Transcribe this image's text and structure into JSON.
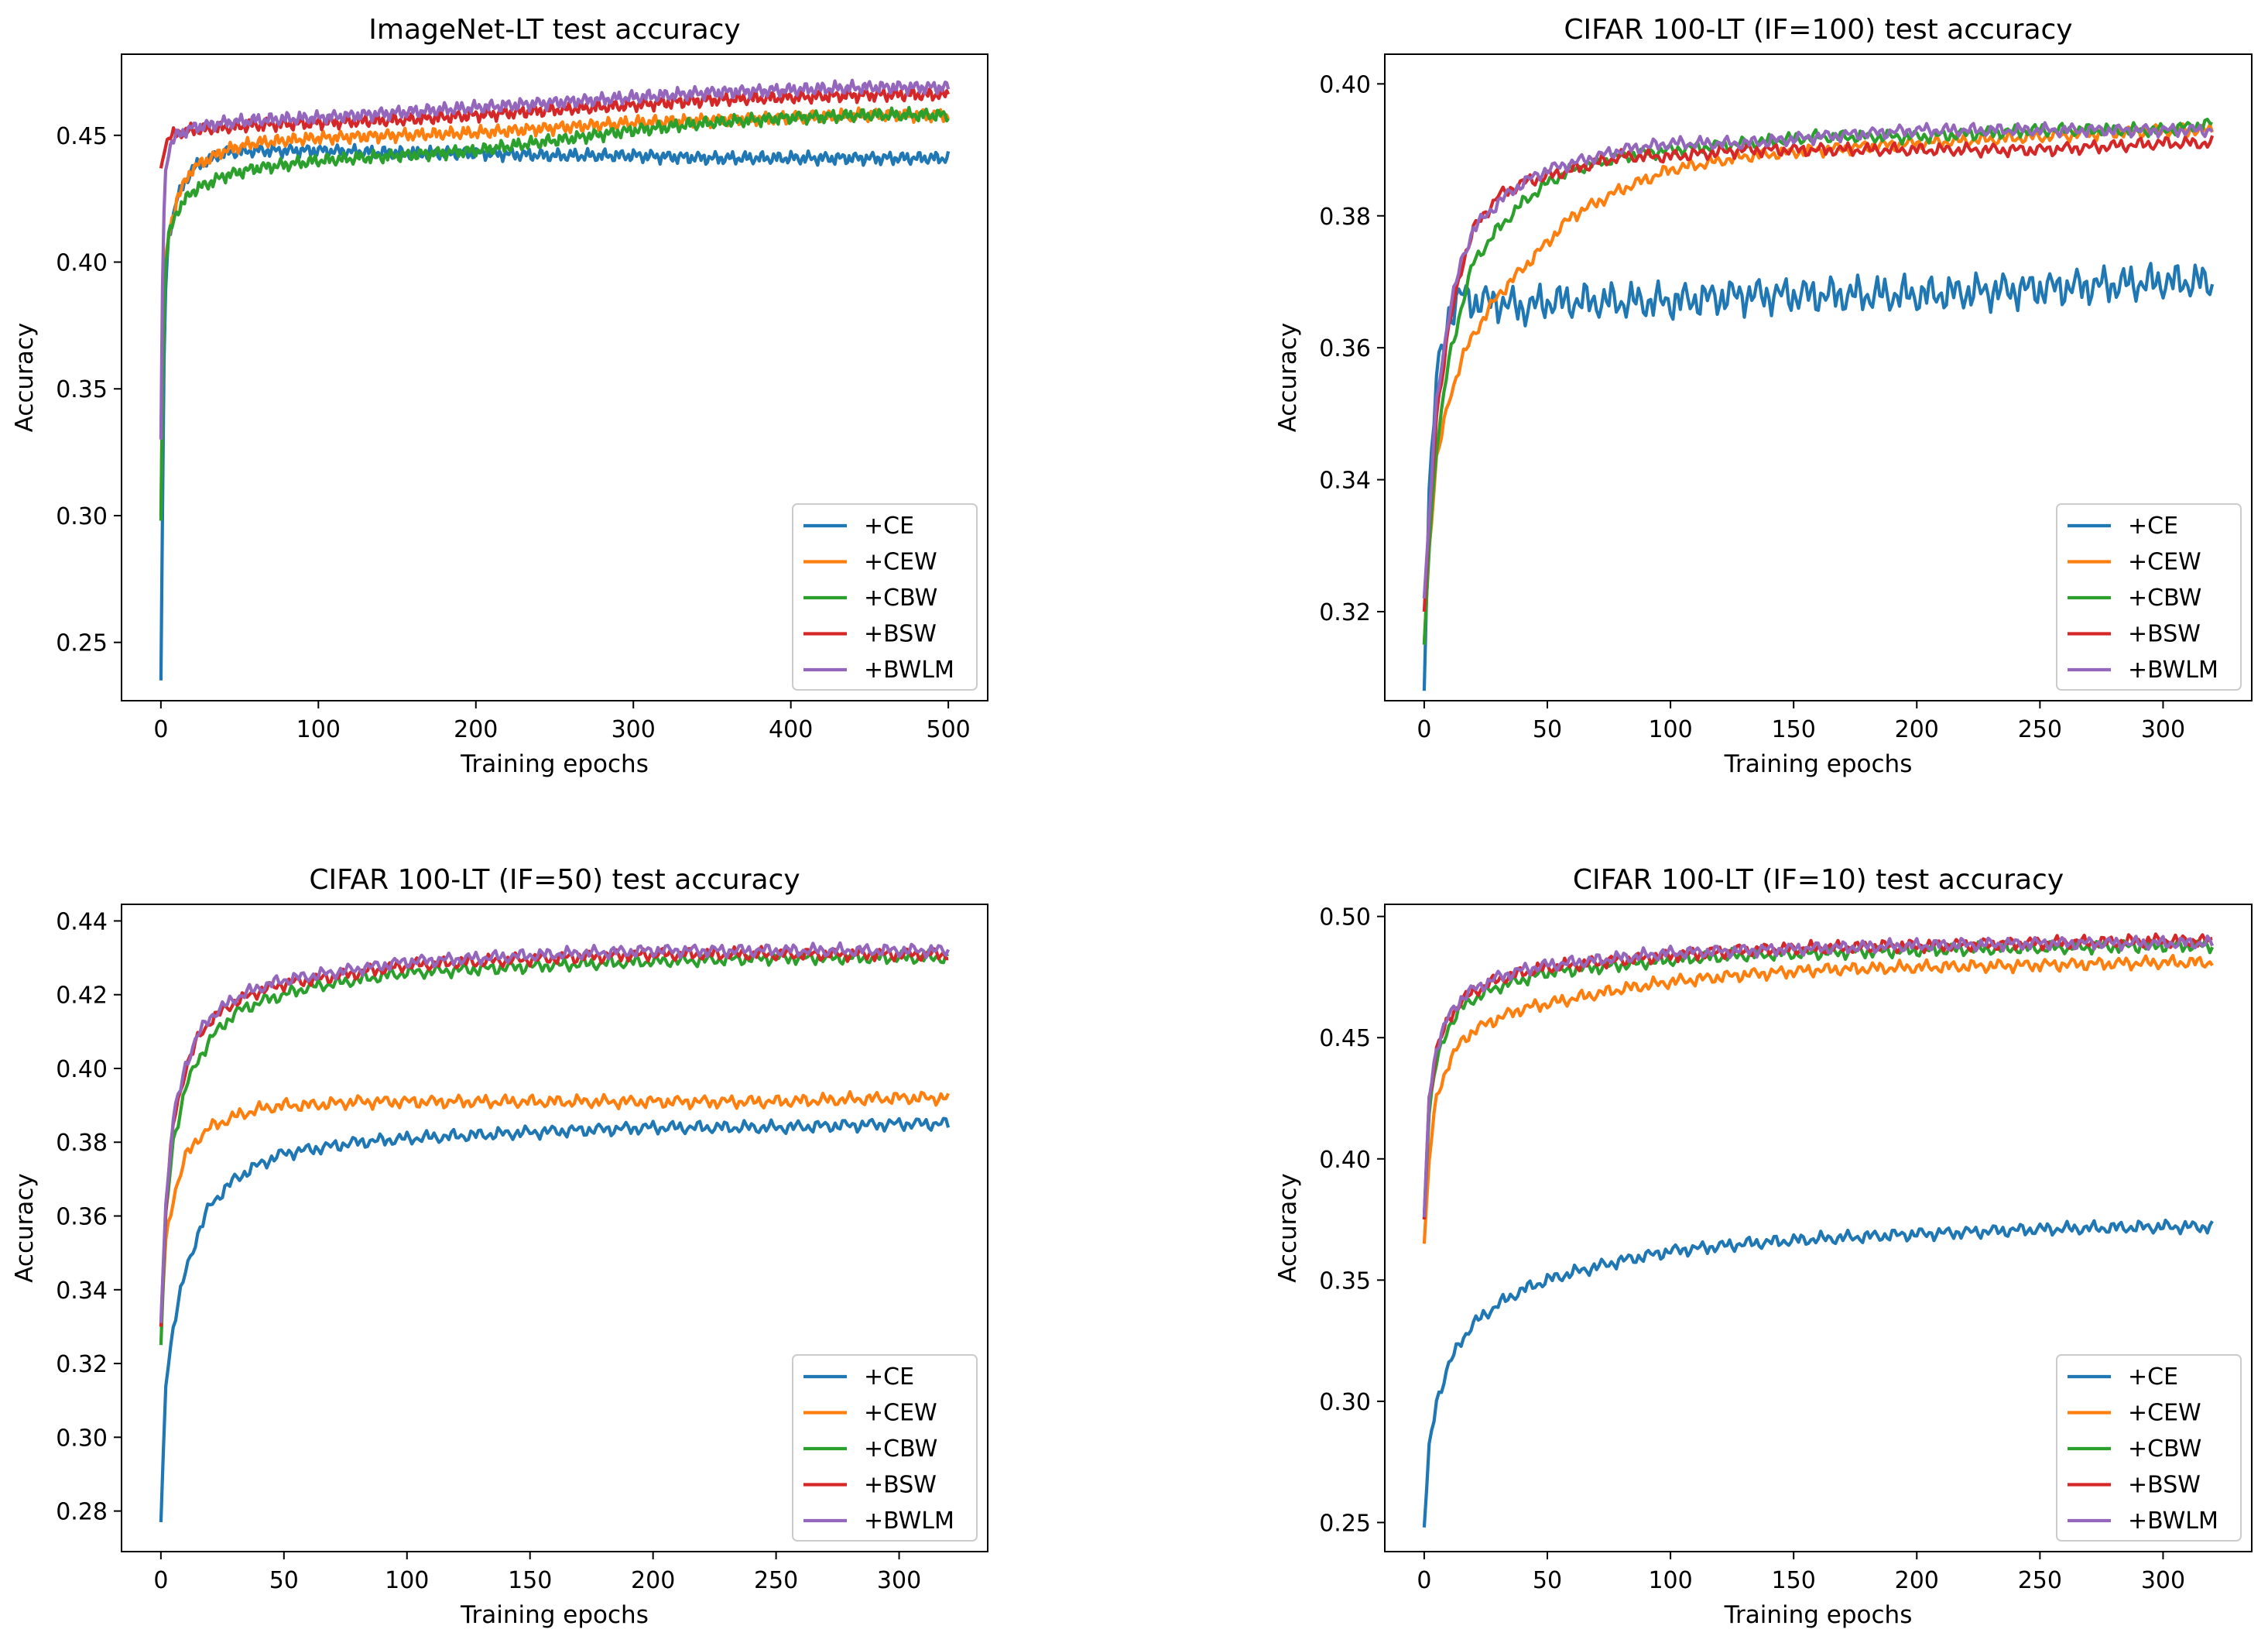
{
  "figure": {
    "background": "#ffffff"
  },
  "colors": {
    "+CE": "#1f77b4",
    "+CEW": "#ff7f0e",
    "+CBW": "#2ca02c",
    "+BSW": "#d62728",
    "+BWLM": "#9467bd"
  },
  "chart_data": [
    {
      "type": "line",
      "title": "ImageNet-LT test accuracy",
      "xlabel": "Training epochs",
      "ylabel": "Accuracy",
      "xlim": [
        -25,
        525
      ],
      "ylim": [
        0.227,
        0.482
      ],
      "xticks": [
        0,
        100,
        200,
        300,
        400,
        500
      ],
      "yticks": [
        0.25,
        0.3,
        0.35,
        0.4,
        0.45
      ],
      "x": [
        0,
        1,
        2,
        3,
        5,
        10,
        20,
        40,
        60,
        100,
        150,
        200,
        250,
        300,
        350,
        400,
        450,
        500
      ],
      "legend": "lower-right",
      "series": [
        {
          "name": "+CE",
          "values": [
            0.235,
            0.3,
            0.36,
            0.39,
            0.41,
            0.425,
            0.437,
            0.443,
            0.444,
            0.444,
            0.443,
            0.443,
            0.442,
            0.442,
            0.441,
            0.441,
            0.441,
            0.441
          ]
        },
        {
          "name": "+CEW",
          "values": [
            0.3,
            0.35,
            0.38,
            0.4,
            0.41,
            0.425,
            0.437,
            0.444,
            0.447,
            0.449,
            0.45,
            0.451,
            0.453,
            0.455,
            0.456,
            0.457,
            0.458,
            0.458
          ]
        },
        {
          "name": "+CBW",
          "values": [
            0.298,
            0.35,
            0.38,
            0.4,
            0.41,
            0.42,
            0.428,
            0.434,
            0.437,
            0.44,
            0.442,
            0.444,
            0.448,
            0.452,
            0.455,
            0.457,
            0.458,
            0.458
          ]
        },
        {
          "name": "+BSW",
          "values": [
            0.437,
            0.44,
            0.445,
            0.447,
            0.449,
            0.451,
            0.452,
            0.453,
            0.454,
            0.455,
            0.456,
            0.458,
            0.46,
            0.462,
            0.464,
            0.465,
            0.466,
            0.466
          ]
        },
        {
          "name": "+BWLM",
          "values": [
            0.33,
            0.39,
            0.42,
            0.435,
            0.445,
            0.45,
            0.453,
            0.455,
            0.456,
            0.457,
            0.459,
            0.461,
            0.463,
            0.465,
            0.467,
            0.468,
            0.469,
            0.469
          ]
        }
      ]
    },
    {
      "type": "line",
      "title": "CIFAR 100-LT (IF=100) test accuracy",
      "xlabel": "Training epochs",
      "ylabel": "Accuracy",
      "xlim": [
        -16,
        336
      ],
      "ylim": [
        0.3065,
        0.4045
      ],
      "xticks": [
        0,
        50,
        100,
        150,
        200,
        250,
        300
      ],
      "yticks": [
        0.32,
        0.34,
        0.36,
        0.38,
        0.4
      ],
      "x": [
        0,
        2,
        5,
        10,
        15,
        20,
        30,
        40,
        50,
        60,
        80,
        100,
        130,
        160,
        200,
        250,
        300,
        320
      ],
      "legend": "lower-right",
      "series": [
        {
          "name": "+CE",
          "values": [
            0.308,
            0.338,
            0.355,
            0.365,
            0.368,
            0.367,
            0.367,
            0.366,
            0.367,
            0.367,
            0.367,
            0.367,
            0.368,
            0.368,
            0.368,
            0.369,
            0.37,
            0.37
          ]
        },
        {
          "name": "+CEW",
          "values": [
            0.315,
            0.33,
            0.343,
            0.352,
            0.358,
            0.362,
            0.368,
            0.372,
            0.376,
            0.38,
            0.384,
            0.387,
            0.389,
            0.39,
            0.391,
            0.392,
            0.393,
            0.393
          ]
        },
        {
          "name": "+CBW",
          "values": [
            0.315,
            0.33,
            0.345,
            0.358,
            0.366,
            0.373,
            0.378,
            0.382,
            0.385,
            0.387,
            0.389,
            0.39,
            0.391,
            0.392,
            0.392,
            0.393,
            0.393,
            0.394
          ]
        },
        {
          "name": "+BSW",
          "values": [
            0.32,
            0.333,
            0.35,
            0.363,
            0.372,
            0.378,
            0.383,
            0.385,
            0.386,
            0.387,
            0.389,
            0.389,
            0.39,
            0.39,
            0.39,
            0.39,
            0.391,
            0.391
          ]
        },
        {
          "name": "+BWLM",
          "values": [
            0.322,
            0.334,
            0.352,
            0.365,
            0.373,
            0.378,
            0.382,
            0.385,
            0.387,
            0.388,
            0.39,
            0.391,
            0.391,
            0.392,
            0.393,
            0.393,
            0.393,
            0.393
          ]
        }
      ]
    },
    {
      "type": "line",
      "title": "CIFAR 100-LT (IF=50) test accuracy",
      "xlabel": "Training epochs",
      "ylabel": "Accuracy",
      "xlim": [
        -16,
        336
      ],
      "ylim": [
        0.269,
        0.4445
      ],
      "xticks": [
        0,
        50,
        100,
        150,
        200,
        250,
        300
      ],
      "yticks": [
        0.28,
        0.3,
        0.32,
        0.34,
        0.36,
        0.38,
        0.4,
        0.42,
        0.44
      ],
      "x": [
        0,
        2,
        5,
        10,
        15,
        20,
        30,
        40,
        50,
        60,
        80,
        100,
        130,
        160,
        200,
        250,
        300,
        320
      ],
      "legend": "lower-right",
      "series": [
        {
          "name": "+CE",
          "values": [
            0.277,
            0.315,
            0.33,
            0.345,
            0.355,
            0.363,
            0.37,
            0.374,
            0.377,
            0.378,
            0.38,
            0.381,
            0.382,
            0.383,
            0.384,
            0.384,
            0.385,
            0.385
          ]
        },
        {
          "name": "+CEW",
          "values": [
            0.33,
            0.353,
            0.365,
            0.376,
            0.381,
            0.384,
            0.387,
            0.389,
            0.39,
            0.39,
            0.391,
            0.391,
            0.391,
            0.391,
            0.391,
            0.391,
            0.392,
            0.392
          ]
        },
        {
          "name": "+CBW",
          "values": [
            0.325,
            0.36,
            0.38,
            0.395,
            0.402,
            0.408,
            0.415,
            0.418,
            0.42,
            0.422,
            0.424,
            0.426,
            0.427,
            0.428,
            0.429,
            0.43,
            0.43,
            0.43
          ]
        },
        {
          "name": "+BSW",
          "values": [
            0.33,
            0.362,
            0.385,
            0.4,
            0.408,
            0.413,
            0.418,
            0.421,
            0.423,
            0.424,
            0.426,
            0.428,
            0.429,
            0.43,
            0.431,
            0.431,
            0.431,
            0.431
          ]
        },
        {
          "name": "+BWLM",
          "values": [
            0.331,
            0.363,
            0.386,
            0.401,
            0.409,
            0.414,
            0.419,
            0.422,
            0.424,
            0.425,
            0.427,
            0.429,
            0.43,
            0.431,
            0.432,
            0.432,
            0.432,
            0.432
          ]
        }
      ]
    },
    {
      "type": "line",
      "title": "CIFAR 100-LT (IF=10) test accuracy",
      "xlabel": "Training epochs",
      "ylabel": "Accuracy",
      "xlim": [
        -16,
        336
      ],
      "ylim": [
        0.238,
        0.505
      ],
      "xticks": [
        0,
        50,
        100,
        150,
        200,
        250,
        300
      ],
      "yticks": [
        0.25,
        0.3,
        0.35,
        0.4,
        0.45,
        0.5
      ],
      "x": [
        0,
        2,
        5,
        10,
        15,
        20,
        30,
        40,
        50,
        60,
        80,
        100,
        130,
        160,
        200,
        250,
        300,
        320
      ],
      "legend": "lower-right",
      "series": [
        {
          "name": "+CE",
          "values": [
            0.248,
            0.28,
            0.3,
            0.315,
            0.325,
            0.332,
            0.34,
            0.346,
            0.35,
            0.353,
            0.358,
            0.362,
            0.365,
            0.367,
            0.369,
            0.371,
            0.372,
            0.372
          ]
        },
        {
          "name": "+CEW",
          "values": [
            0.365,
            0.4,
            0.425,
            0.44,
            0.448,
            0.453,
            0.458,
            0.462,
            0.464,
            0.466,
            0.47,
            0.473,
            0.476,
            0.478,
            0.479,
            0.48,
            0.481,
            0.481
          ]
        },
        {
          "name": "+CBW",
          "values": [
            0.375,
            0.42,
            0.44,
            0.455,
            0.462,
            0.466,
            0.471,
            0.474,
            0.477,
            0.478,
            0.48,
            0.482,
            0.484,
            0.485,
            0.486,
            0.487,
            0.488,
            0.488
          ]
        },
        {
          "name": "+BSW",
          "values": [
            0.375,
            0.425,
            0.445,
            0.458,
            0.465,
            0.469,
            0.474,
            0.477,
            0.479,
            0.48,
            0.482,
            0.484,
            0.486,
            0.487,
            0.488,
            0.489,
            0.49,
            0.49
          ]
        },
        {
          "name": "+BWLM",
          "values": [
            0.376,
            0.426,
            0.446,
            0.459,
            0.466,
            0.47,
            0.475,
            0.478,
            0.48,
            0.481,
            0.483,
            0.485,
            0.486,
            0.487,
            0.488,
            0.489,
            0.489,
            0.489
          ]
        }
      ]
    }
  ]
}
